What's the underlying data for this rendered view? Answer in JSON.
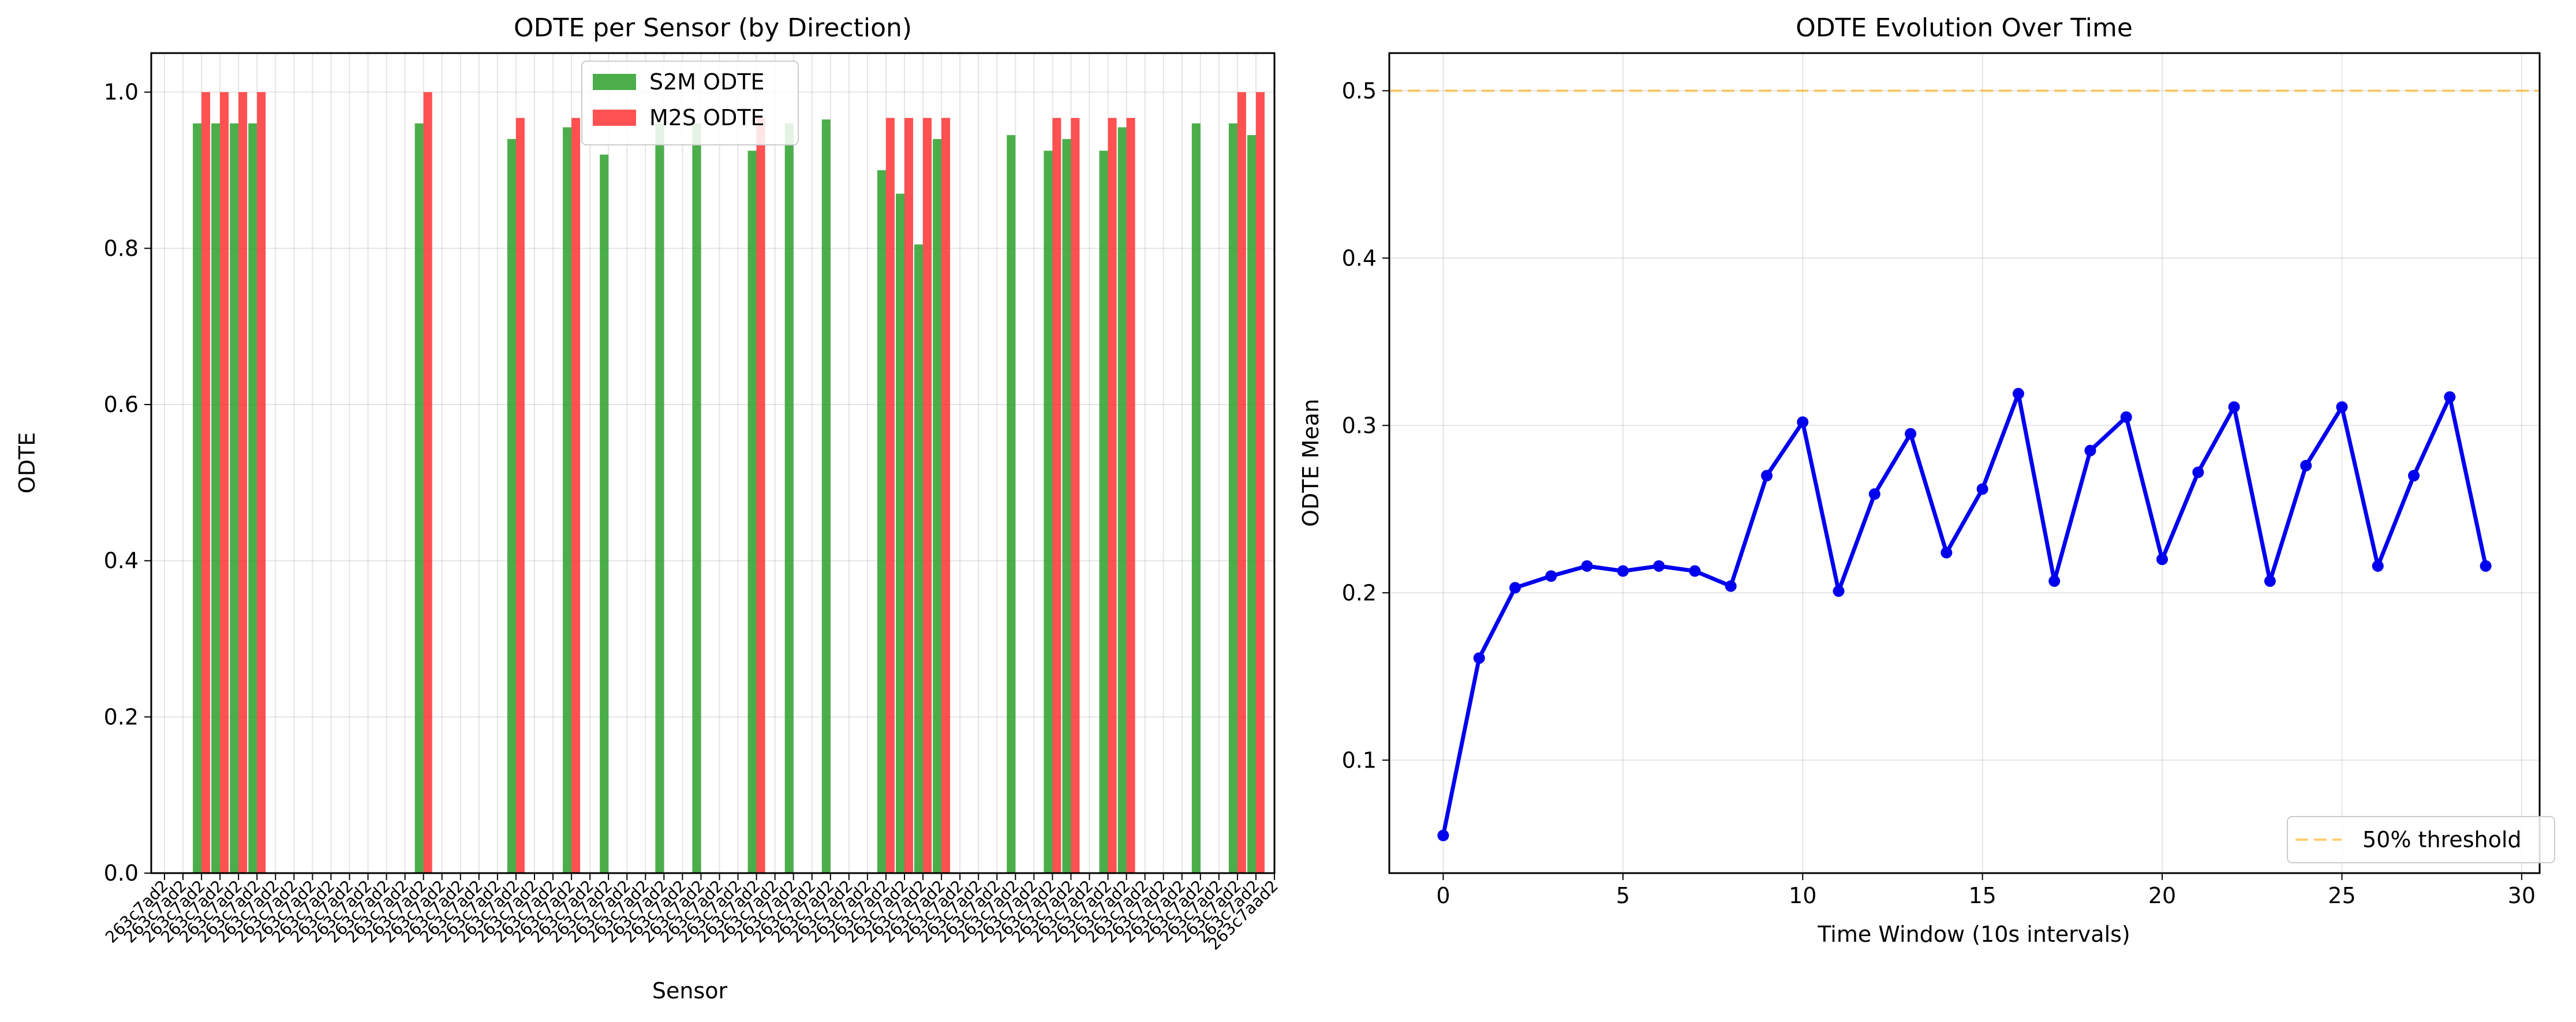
{
  "chart_data": [
    {
      "type": "bar",
      "title": "ODTE per Sensor (by Direction)",
      "xlabel": "Sensor",
      "ylabel": "ODTE",
      "ylim": [
        0,
        1.05
      ],
      "yticks": [
        0.0,
        0.2,
        0.4,
        0.6,
        0.8,
        1.0
      ],
      "grid": true,
      "legend_position": "top-center",
      "categories": [
        "263c7ad2",
        "263c7ad2",
        "263c7ad2",
        "263c7ad2",
        "263c7ad2",
        "263c7ad2",
        "263c7ad2",
        "263c7ad2",
        "263c7ad2",
        "263c7ad2",
        "263c7ad2",
        "263c7ad2",
        "263c7ad2",
        "263c7ad2",
        "263c7ad2",
        "263c7ad2",
        "263c7ad2",
        "263c7ad2",
        "263c7ad2",
        "263c7ad2",
        "263c7ad2",
        "263c7ad2",
        "263c7ad2",
        "263c7ad2",
        "263c7ad2",
        "263c7ad2",
        "263c7ad2",
        "263c7ad2",
        "263c7ad2",
        "263c7ad2",
        "263c7ad2",
        "263c7ad2",
        "263c7ad2",
        "263c7ad2",
        "263c7ad2",
        "263c7ad2",
        "263c7ad2",
        "263c7ad2",
        "263c7ad2",
        "263c7ad2",
        "263c7ad2",
        "263c7ad2",
        "263c7ad2",
        "263c7ad2",
        "263c7ad2",
        "263c7ad2",
        "263c7ad2",
        "263c7ad2",
        "263c7ad2",
        "263c7ad2",
        "263c7ad2",
        "263c7ad2",
        "263c7ad2",
        "263c7ad2",
        "263c7ad2",
        "263c7ad2",
        "263c7ad2",
        "263c7ad2",
        "263c7ad2",
        "263c7ad2",
        "263c7aad2"
      ],
      "series": [
        {
          "name": "S2M ODTE",
          "color": "#2ca02c",
          "values": [
            0,
            0,
            0.96,
            0.96,
            0.96,
            0.96,
            0,
            0,
            0,
            0,
            0,
            0,
            0,
            0,
            0.96,
            0,
            0,
            0,
            0,
            0.94,
            0,
            0,
            0.955,
            0,
            0.92,
            0,
            0,
            0.96,
            0,
            0.96,
            0,
            0,
            0.925,
            0,
            0.96,
            0,
            0.965,
            0,
            0,
            0.9,
            0.87,
            0.805,
            0.94,
            0,
            0,
            0,
            0.945,
            0,
            0.925,
            0.94,
            0,
            0.925,
            0.955,
            0,
            0,
            0,
            0.96,
            0,
            0.96,
            0.945,
            0
          ]
        },
        {
          "name": "M2S ODTE",
          "color": "#ff3333",
          "values": [
            0,
            0,
            1.0,
            1.0,
            1.0,
            1.0,
            0,
            0,
            0,
            0,
            0,
            0,
            0,
            0,
            1.0,
            0,
            0,
            0,
            0,
            0.967,
            0,
            0,
            0.967,
            0,
            0,
            0,
            0,
            0,
            0,
            0,
            0,
            0,
            0.967,
            0,
            0,
            0,
            0,
            0,
            0,
            0.967,
            0.967,
            0.967,
            0.967,
            0,
            0,
            0,
            0,
            0,
            0.967,
            0.967,
            0,
            0.967,
            0.967,
            0,
            0,
            0,
            0,
            0,
            1.0,
            1.0,
            0
          ]
        }
      ]
    },
    {
      "type": "line",
      "title": "ODTE Evolution Over Time",
      "xlabel": "Time Window (10s intervals)",
      "ylabel": "ODTE Mean",
      "xlim": [
        -1.5,
        30.5
      ],
      "ylim": [
        0.0325,
        0.5225
      ],
      "xticks": [
        0,
        5,
        10,
        15,
        20,
        25,
        30
      ],
      "yticks": [
        0.1,
        0.2,
        0.3,
        0.4,
        0.5
      ],
      "grid": true,
      "legend_position": "bottom-right",
      "series": [
        {
          "name": "",
          "color": "#0000ee",
          "x": [
            0,
            1,
            2,
            3,
            4,
            5,
            6,
            7,
            8,
            9,
            10,
            11,
            12,
            13,
            14,
            15,
            16,
            17,
            18,
            19,
            20,
            21,
            22,
            23,
            24,
            25,
            26,
            27,
            28,
            29
          ],
          "y": [
            0.055,
            0.161,
            0.203,
            0.21,
            0.216,
            0.213,
            0.216,
            0.213,
            0.204,
            0.27,
            0.302,
            0.201,
            0.259,
            0.295,
            0.224,
            0.262,
            0.319,
            0.207,
            0.285,
            0.305,
            0.22,
            0.272,
            0.311,
            0.207,
            0.276,
            0.311,
            0.216,
            0.27,
            0.317,
            0.216
          ]
        }
      ],
      "threshold": {
        "name": "50% threshold",
        "value": 0.5,
        "color": "#ffa500"
      }
    }
  ]
}
